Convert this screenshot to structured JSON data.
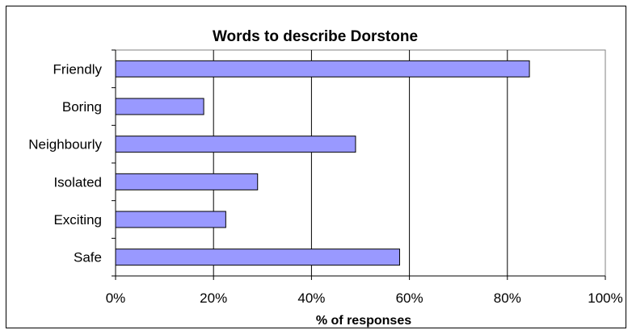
{
  "chart_data": {
    "type": "bar",
    "orientation": "horizontal",
    "title": "Words to describe Dorstone",
    "xlabel": "% of responses",
    "ylabel": "",
    "categories": [
      "Friendly",
      "Boring",
      "Neighbourly",
      "Isolated",
      "Exciting",
      "Safe"
    ],
    "values": [
      84.5,
      18,
      49,
      29,
      22.5,
      58
    ],
    "xlim": [
      0,
      100
    ],
    "x_ticks": [
      "0%",
      "20%",
      "40%",
      "60%",
      "80%",
      "100%"
    ],
    "grid": "vertical",
    "legend": "none",
    "bar_color": "#9999ff"
  }
}
